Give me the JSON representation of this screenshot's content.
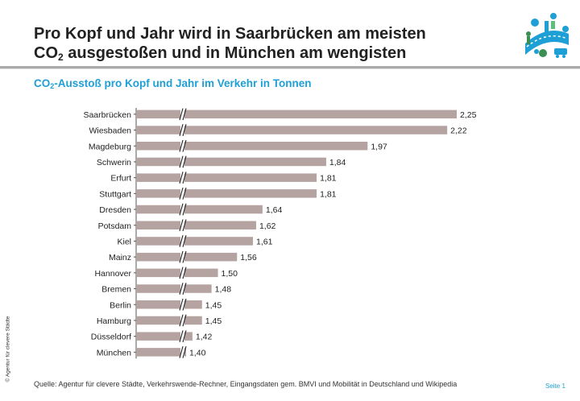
{
  "header": {
    "title_line1": "Pro Kopf und Jahr wird in Saarbrücken am meisten",
    "title_line2_pre": "CO",
    "title_line2_sub": "2",
    "title_line2_post": " ausgestoßen und in München am wengisten"
  },
  "subtitle": {
    "pre": "CO",
    "sub": "2",
    "post": "-Ausstoß pro Kopf und Jahr im Verkehr in Tonnen"
  },
  "footer": {
    "source": "Quelle: Agentur für clevere Städte, Verkehrswende-Rechner, Eingangsdaten gem. BMVI und Mobilität in Deutschland und Wikipedia",
    "page": "Seite 1",
    "copyright": "© Agentur für clevere Städte"
  },
  "colors": {
    "bar": "#b5a3a2",
    "accent": "#1e9fd6"
  },
  "chart_data": {
    "type": "bar",
    "orientation": "horizontal",
    "axis_break": true,
    "categories": [
      "Saarbrücken",
      "Wiesbaden",
      "Magdeburg",
      "Schwerin",
      "Erfurt",
      "Stuttgart",
      "Dresden",
      "Potsdam",
      "Kiel",
      "Mainz",
      "Hannover",
      "Bremen",
      "Berlin",
      "Hamburg",
      "Düsseldorf",
      "München"
    ],
    "values": [
      2.25,
      2.22,
      1.97,
      1.84,
      1.81,
      1.81,
      1.64,
      1.62,
      1.61,
      1.56,
      1.5,
      1.48,
      1.45,
      1.45,
      1.42,
      1.4
    ],
    "value_labels": [
      "2,25",
      "2,22",
      "1,97",
      "1,84",
      "1,81",
      "1,81",
      "1,64",
      "1,62",
      "1,61",
      "1,56",
      "1,50",
      "1,48",
      "1,45",
      "1,45",
      "1,42",
      "1,40"
    ]
  }
}
